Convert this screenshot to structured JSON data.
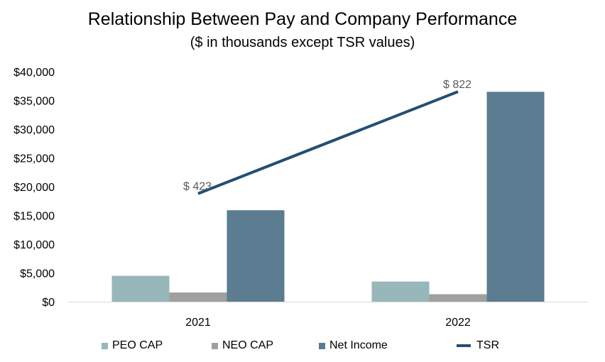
{
  "chart_data": {
    "type": "bar",
    "title": "Relationship Between Pay and Company Performance",
    "subtitle": "($ in thousands except TSR values)",
    "categories": [
      "2021",
      "2022"
    ],
    "series": [
      {
        "name": "PEO CAP",
        "type": "bar",
        "color": "#97b7bb",
        "values": [
          4500,
          3500
        ]
      },
      {
        "name": "NEO CAP",
        "type": "bar",
        "color": "#a0a0a0",
        "values": [
          1600,
          1300
        ]
      },
      {
        "name": "Net Income",
        "type": "bar",
        "color": "#5b7c91",
        "values": [
          15900,
          36500
        ]
      },
      {
        "name": "TSR",
        "type": "line",
        "color": "#234e74",
        "values": [
          423,
          822
        ],
        "labels": [
          "$ 423",
          "$ 822"
        ]
      }
    ],
    "yaxis": {
      "min": 0,
      "max": 40000,
      "ticks": [
        "$0",
        "$5,000",
        "$10,000",
        "$15,000",
        "$20,000",
        "$25,000",
        "$30,000",
        "$35,000",
        "$40,000"
      ]
    },
    "tsr_axis": {
      "min": 0,
      "max": 900,
      "note": "secondary scale, not displayed"
    },
    "legend": {
      "position": "bottom"
    }
  }
}
